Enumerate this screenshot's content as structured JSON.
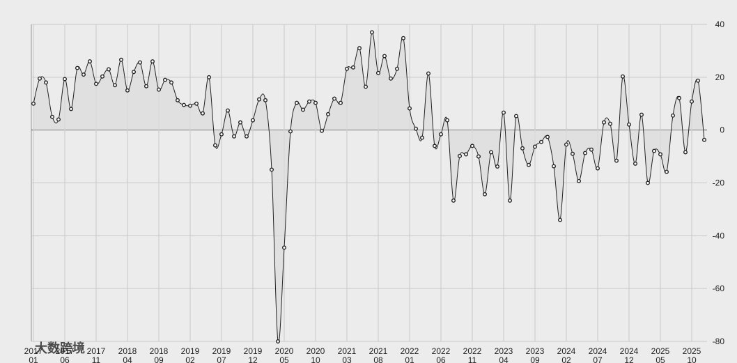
{
  "chart_data": {
    "type": "line",
    "categories": [
      "2017\n01",
      null,
      null,
      null,
      null,
      "2017\n06",
      null,
      null,
      null,
      null,
      "2017\n11",
      null,
      null,
      null,
      null,
      "2018\n04",
      null,
      null,
      null,
      null,
      "2018\n09",
      null,
      null,
      null,
      null,
      "2019\n02",
      null,
      null,
      null,
      null,
      "2019\n07",
      null,
      null,
      null,
      null,
      "2019\n12",
      null,
      null,
      null,
      null,
      "2020\n05",
      null,
      null,
      null,
      null,
      "2020\n10",
      null,
      null,
      null,
      null,
      "2021\n03",
      null,
      null,
      null,
      null,
      "2021\n08",
      null,
      null,
      null,
      null,
      "2022\n01",
      null,
      null,
      null,
      null,
      "2022\n06",
      null,
      null,
      null,
      null,
      "2022\n11",
      null,
      null,
      null,
      null,
      "2023\n04",
      null,
      null,
      null,
      null,
      "2023\n09",
      null,
      null,
      null,
      null,
      "2024\n02",
      null,
      null,
      null,
      null,
      "2024\n07",
      null,
      null,
      null,
      null,
      "2024\n12",
      null,
      null,
      null,
      null,
      "2025\n05",
      null,
      null,
      null,
      null,
      "2025\n10",
      null,
      null
    ],
    "series": [
      {
        "color": "#222222",
        "fill": "#dcdcdc",
        "values": [
          10,
          19.5,
          18,
          5,
          4,
          19.3,
          8,
          23.5,
          21,
          26,
          17.5,
          20.3,
          23,
          17,
          26.6,
          15,
          22,
          25.6,
          16.6,
          26,
          15.3,
          19,
          18,
          11.3,
          9.5,
          9.2,
          10,
          6.3,
          20,
          -5.8,
          -1.6,
          7.4,
          -2.4,
          2.9,
          -2.4,
          3.7,
          11.6,
          11.3,
          -15,
          -80,
          -44.5,
          -0.5,
          10.3,
          7.7,
          10.8,
          10.3,
          -0.3,
          6,
          11.9,
          10.3,
          23.2,
          23.7,
          31,
          16.4,
          37,
          21.6,
          28,
          19.5,
          23.2,
          34.8,
          8.2,
          0.5,
          -2.9,
          21.4,
          -6,
          -1.6,
          3.7,
          -26.7,
          -9.8,
          -9.2,
          -6,
          -10,
          -24.3,
          -8.4,
          -13.8,
          6.6,
          -26.7,
          5.3,
          -6.9,
          -13.2,
          -6.3,
          -4.5,
          -2.6,
          -13.7,
          -34,
          -5.5,
          -9,
          -19.3,
          -8.7,
          -7.4,
          -14.5,
          2.9,
          2.4,
          -11.6,
          20.3,
          2.1,
          -12.7,
          5.8,
          -20,
          -7.9,
          -9.2,
          -15.8,
          5.5,
          12.1,
          -8.4,
          10.8,
          18.7,
          -3.7
        ]
      }
    ],
    "ylim": [
      -80,
      40
    ],
    "yticks": [
      40,
      20,
      0,
      -20,
      -40,
      -60,
      -80
    ],
    "grid": true,
    "area": true,
    "watermark": "大数跨境"
  }
}
